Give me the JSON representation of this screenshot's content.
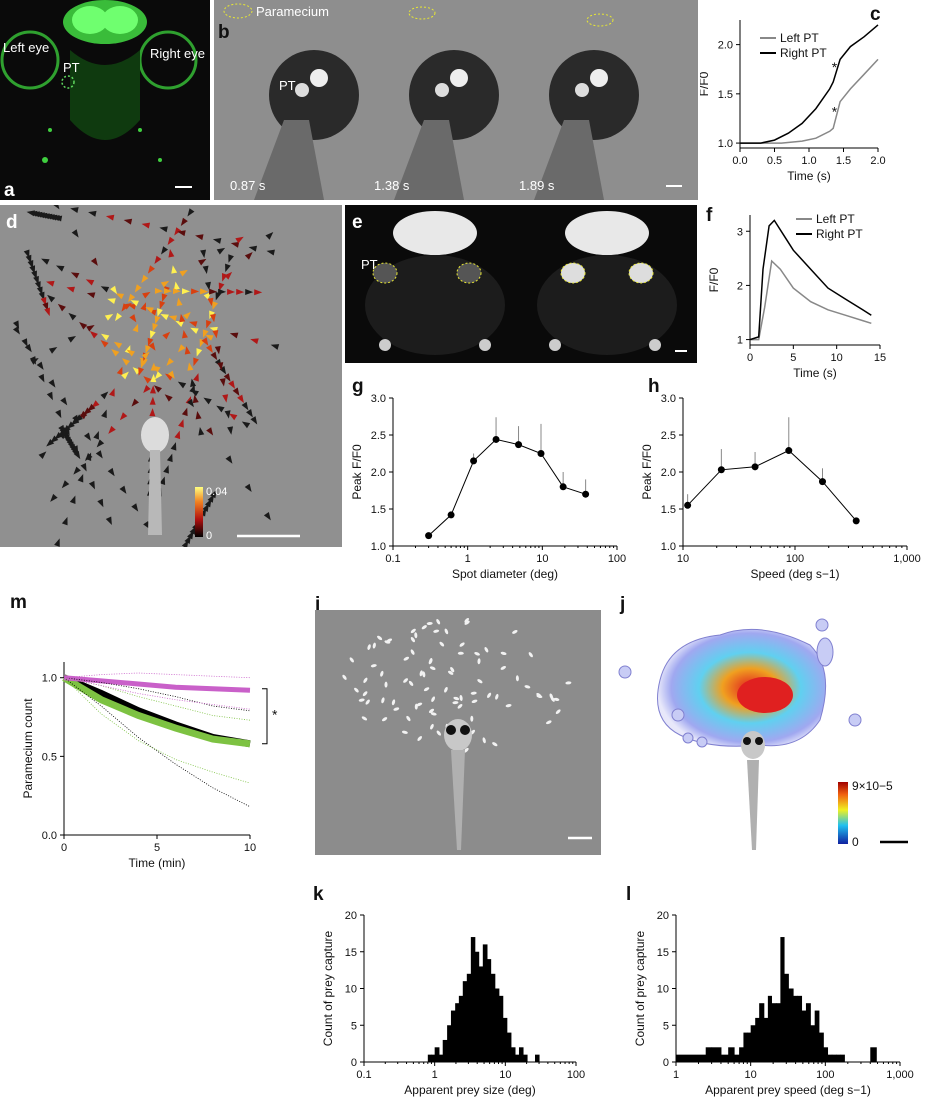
{
  "labels": {
    "a": "a",
    "b": "b",
    "c": "c",
    "d": "d",
    "e": "e",
    "f": "f",
    "g": "g",
    "h": "h",
    "i": "i",
    "j": "j",
    "k": "k",
    "l": "l",
    "m": "m"
  },
  "panel_a": {
    "left_eye": "Left eye",
    "right_eye": "Right eye",
    "pt": "PT"
  },
  "panel_b": {
    "paramecium": "Paramecium",
    "pt": "PT",
    "times": [
      "0.87 s",
      "1.38 s",
      "1.89 s"
    ]
  },
  "panel_d": {
    "cb_max": "0.04",
    "cb_min": "0"
  },
  "panel_e": {
    "pt": "PT"
  },
  "panel_j": {
    "cb_max": "9×10−5",
    "cb_min": "0"
  },
  "chart_data": [
    {
      "id": "c",
      "type": "line",
      "xlabel": "Time (s)",
      "ylabel": "F/F0",
      "xlim": [
        0,
        2
      ],
      "ylim": [
        0.95,
        2.25
      ],
      "xticks": [
        "0.0",
        "0.5",
        "1.0",
        "1.5",
        "2.0"
      ],
      "yticks": [
        "1.0",
        "1.5",
        "2.0"
      ],
      "legend": [
        "Left PT",
        "Right PT"
      ],
      "series": [
        {
          "name": "Left PT",
          "color": "#888888",
          "x": [
            0,
            0.3,
            0.6,
            0.9,
            1.1,
            1.3,
            1.35,
            1.45,
            1.6,
            1.8,
            2.0
          ],
          "y": [
            1.0,
            1.0,
            1.0,
            1.02,
            1.05,
            1.12,
            1.15,
            1.42,
            1.55,
            1.7,
            1.85
          ]
        },
        {
          "name": "Right PT",
          "color": "#000000",
          "x": [
            0,
            0.3,
            0.5,
            0.7,
            0.9,
            1.1,
            1.3,
            1.35,
            1.45,
            1.6,
            1.8,
            2.0
          ],
          "y": [
            1.0,
            1.0,
            1.03,
            1.1,
            1.2,
            1.35,
            1.55,
            1.62,
            1.85,
            1.98,
            2.08,
            2.2
          ]
        }
      ],
      "annotations": [
        "*",
        "*"
      ]
    },
    {
      "id": "f",
      "type": "line",
      "xlabel": "Time (s)",
      "ylabel": "F/F0",
      "xlim": [
        0,
        15
      ],
      "ylim": [
        0.9,
        3.3
      ],
      "xticks": [
        "0",
        "5",
        "10",
        "15"
      ],
      "yticks": [
        "1",
        "2",
        "3"
      ],
      "legend": [
        "Left PT",
        "Right PT"
      ],
      "series": [
        {
          "name": "Left PT",
          "color": "#888888",
          "x": [
            0,
            1,
            1.7,
            2.5,
            3.5,
            5,
            7,
            9,
            11,
            13,
            14
          ],
          "y": [
            1,
            1,
            1.6,
            2.45,
            2.3,
            1.95,
            1.7,
            1.55,
            1.45,
            1.35,
            1.3
          ]
        },
        {
          "name": "Right PT",
          "color": "#000000",
          "x": [
            0,
            1,
            1.5,
            2.2,
            2.8,
            4,
            5,
            7,
            9,
            11,
            13,
            14
          ],
          "y": [
            1,
            1.05,
            2.3,
            3.1,
            3.2,
            2.9,
            2.65,
            2.3,
            1.95,
            1.75,
            1.55,
            1.45
          ]
        }
      ]
    },
    {
      "id": "g",
      "type": "line",
      "xlabel": "Spot diameter (deg)",
      "ylabel": "Peak F/F0",
      "xscale": "log",
      "xlim": [
        0.1,
        100
      ],
      "ylim": [
        1.0,
        3.0
      ],
      "xticks": [
        "0.1",
        "1",
        "10",
        "100"
      ],
      "yticks": [
        "1.0",
        "1.5",
        "2.0",
        "2.5",
        "3.0"
      ],
      "x": [
        0.3,
        0.6,
        1.2,
        2.4,
        4.8,
        9.6,
        19,
        38
      ],
      "y": [
        1.14,
        1.42,
        2.15,
        2.44,
        2.37,
        2.25,
        1.8,
        1.7
      ],
      "err": [
        0,
        0,
        0.1,
        0.3,
        0.25,
        0.4,
        0.2,
        0.2
      ]
    },
    {
      "id": "h",
      "type": "line",
      "xlabel": "Speed (deg s−1)",
      "ylabel": "Peak F/F0",
      "xscale": "log",
      "xlim": [
        10,
        1000
      ],
      "ylim": [
        1.0,
        3.0
      ],
      "xticks": [
        "10",
        "100",
        "1,000"
      ],
      "yticks": [
        "1.0",
        "1.5",
        "2.0",
        "2.5",
        "3.0"
      ],
      "x": [
        11,
        22,
        44,
        88,
        176,
        352
      ],
      "y": [
        1.55,
        2.03,
        2.07,
        2.29,
        1.87,
        1.34
      ],
      "err": [
        0.15,
        0.28,
        0.2,
        0.45,
        0.18,
        0
      ]
    },
    {
      "id": "m",
      "type": "line",
      "xlabel": "Time (min)",
      "ylabel": "Paramecium count",
      "xlim": [
        0,
        10
      ],
      "ylim": [
        0,
        1.1
      ],
      "xticks": [
        "0",
        "5",
        "10"
      ],
      "yticks": [
        "0.0",
        "0.5",
        "1.0"
      ],
      "series": [
        {
          "name": "",
          "color": "#000000",
          "x": [
            0,
            2,
            4,
            6,
            8,
            10
          ],
          "y": [
            1.0,
            0.9,
            0.79,
            0.7,
            0.62,
            0.58
          ]
        },
        {
          "name": "",
          "color": "#7dc242",
          "x": [
            0,
            2,
            4,
            6,
            8,
            10
          ],
          "y": [
            1.0,
            0.86,
            0.76,
            0.68,
            0.61,
            0.58
          ]
        },
        {
          "name": "",
          "color": "#c960c9",
          "x": [
            0,
            2,
            4,
            6,
            8,
            10
          ],
          "y": [
            1.0,
            0.98,
            0.96,
            0.94,
            0.93,
            0.92
          ]
        }
      ],
      "annotations": [
        "*"
      ]
    },
    {
      "id": "k",
      "type": "bar",
      "xlabel": "Apparent prey size (deg)",
      "ylabel": "Count of prey capture",
      "xscale": "log",
      "xlim": [
        0.1,
        100
      ],
      "ylim": [
        0,
        20
      ],
      "xticks": [
        "0.1",
        "1",
        "10",
        "100"
      ],
      "yticks": [
        "0",
        "5",
        "10",
        "15",
        "20"
      ],
      "bins": [
        0.8,
        0.9,
        1.0,
        1.15,
        1.3,
        1.5,
        1.7,
        1.95,
        2.2,
        2.5,
        2.85,
        3.25,
        3.7,
        4.2,
        4.8,
        5.5,
        6.2,
        7.1,
        8.1,
        9.2,
        10.5,
        12,
        13.7,
        15.6,
        17.8,
        20.3,
        23.1,
        26.3,
        30
      ],
      "values": [
        1,
        1,
        2,
        1,
        3,
        5,
        7,
        8,
        9,
        11,
        12,
        17,
        15,
        13,
        16,
        14,
        12,
        10,
        9,
        6,
        4,
        2,
        1,
        2,
        1,
        0,
        0,
        1,
        0
      ]
    },
    {
      "id": "l",
      "type": "bar",
      "xlabel": "Apparent prey speed (deg s−1)",
      "ylabel": "Count of prey capture",
      "xscale": "log",
      "xlim": [
        1,
        1000
      ],
      "ylim": [
        0,
        20
      ],
      "xticks": [
        "1",
        "10",
        "100",
        "1,000"
      ],
      "yticks": [
        "0",
        "5",
        "10",
        "15",
        "20"
      ],
      "bins": [
        1,
        2.5,
        3,
        4,
        5,
        6,
        7,
        8,
        9,
        10,
        11.5,
        13,
        15,
        17,
        19,
        22,
        25,
        28,
        32,
        37,
        42,
        48,
        55,
        63,
        72,
        82,
        94,
        107,
        122,
        140,
        160,
        180,
        400
      ],
      "values": [
        1,
        2,
        2,
        1,
        2,
        1,
        2,
        4,
        4,
        5,
        6,
        8,
        6,
        9,
        8,
        8,
        17,
        12,
        10,
        9,
        9,
        7,
        8,
        5,
        7,
        4,
        2,
        1,
        1,
        1,
        1,
        0,
        2
      ]
    }
  ]
}
